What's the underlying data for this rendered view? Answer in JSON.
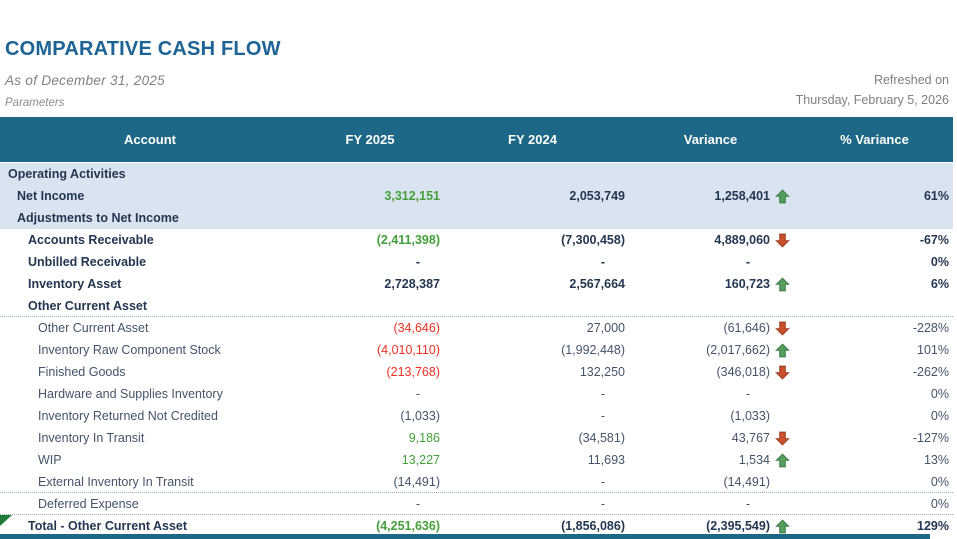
{
  "page": {
    "title": "COMPARATIVE CASH FLOW",
    "subtitle": "As of December 31, 2025",
    "parameters_label": "Parameters",
    "refreshed_label": "Refreshed on",
    "refreshed_date": "Thursday, February 5, 2026"
  },
  "colors": {
    "header_bg": "#1D6787",
    "band_bg": "#D9E4F0",
    "title_blue": "#1D6394",
    "bold_text": "#243751",
    "detail_text": "#44546A",
    "positive_green": "#45A03C",
    "negative_red": "#F03022",
    "arrow_up_green": "#559E5E",
    "arrow_down_red": "#C8502C"
  },
  "table": {
    "columns": [
      "Account",
      "FY 2025",
      "FY 2024",
      "Variance",
      "% Variance"
    ],
    "rows": [
      {
        "label": "Operating Activities",
        "indent": 1,
        "style": "section",
        "band": true,
        "fy2025": "",
        "fy2024": "",
        "variance": "",
        "arrow": "",
        "pct": "",
        "divider": false
      },
      {
        "label": "Net Income",
        "indent": 2,
        "style": "bold",
        "band": true,
        "fy2025": "3,312,151",
        "fy2025_color": "green",
        "fy2024": "2,053,749",
        "variance": "1,258,401",
        "arrow": "up",
        "pct": "61%",
        "divider": false
      },
      {
        "label": "Adjustments to Net Income",
        "indent": 2,
        "style": "section",
        "band": true,
        "fy2025": "",
        "fy2024": "",
        "variance": "",
        "arrow": "",
        "pct": "",
        "divider": false
      },
      {
        "label": "Accounts Receivable",
        "indent": 3,
        "style": "bold",
        "band": false,
        "fy2025": "(2,411,398)",
        "fy2025_color": "green",
        "fy2024": "(7,300,458)",
        "variance": "4,889,060",
        "arrow": "down",
        "pct": "-67%",
        "divider": false
      },
      {
        "label": "Unbilled Receivable",
        "indent": 3,
        "style": "bold",
        "band": false,
        "fy2025": "-",
        "fy2024": "-",
        "variance": "-",
        "arrow": "",
        "pct": "0%",
        "divider": false
      },
      {
        "label": "Inventory Asset",
        "indent": 3,
        "style": "bold",
        "band": false,
        "fy2025": "2,728,387",
        "fy2024": "2,567,664",
        "variance": "160,723",
        "arrow": "up",
        "pct": "6%",
        "divider": false
      },
      {
        "label": "Other Current Asset",
        "indent": 3,
        "style": "section",
        "band": false,
        "fy2025": "",
        "fy2024": "",
        "variance": "",
        "arrow": "",
        "pct": "",
        "divider": true
      },
      {
        "label": "Other Current Asset",
        "indent": 4,
        "style": "detail",
        "band": false,
        "fy2025": "(34,646)",
        "fy2025_color": "red",
        "fy2024": "27,000",
        "variance": "(61,646)",
        "arrow": "down",
        "pct": "-228%",
        "divider": false
      },
      {
        "label": "Inventory Raw Component Stock",
        "indent": 4,
        "style": "detail",
        "band": false,
        "fy2025": "(4,010,110)",
        "fy2025_color": "red",
        "fy2024": "(1,992,448)",
        "variance": "(2,017,662)",
        "arrow": "up",
        "pct": "101%",
        "divider": false
      },
      {
        "label": "Finished Goods",
        "indent": 4,
        "style": "detail",
        "band": false,
        "fy2025": "(213,768)",
        "fy2025_color": "red",
        "fy2024": "132,250",
        "variance": "(346,018)",
        "arrow": "down",
        "pct": "-262%",
        "divider": false
      },
      {
        "label": "Hardware and Supplies Inventory",
        "indent": 4,
        "style": "detail",
        "band": false,
        "fy2025": "-",
        "fy2024": "-",
        "variance": "-",
        "arrow": "",
        "pct": "0%",
        "divider": false
      },
      {
        "label": "Inventory Returned Not Credited",
        "indent": 4,
        "style": "detail",
        "band": false,
        "fy2025": "(1,033)",
        "fy2024": "-",
        "variance": "(1,033)",
        "arrow": "",
        "pct": "0%",
        "divider": false
      },
      {
        "label": "Inventory In Transit",
        "indent": 4,
        "style": "detail",
        "band": false,
        "fy2025": "9,186",
        "fy2025_color": "green",
        "fy2024": "(34,581)",
        "variance": "43,767",
        "arrow": "down",
        "pct": "-127%",
        "divider": false
      },
      {
        "label": "WIP",
        "indent": 4,
        "style": "detail",
        "band": false,
        "fy2025": "13,227",
        "fy2025_color": "green",
        "fy2024": "11,693",
        "variance": "1,534",
        "arrow": "up",
        "pct": "13%",
        "divider": false
      },
      {
        "label": "External Inventory In Transit",
        "indent": 4,
        "style": "detail",
        "band": false,
        "fy2025": "(14,491)",
        "fy2024": "-",
        "variance": "(14,491)",
        "arrow": "",
        "pct": "0%",
        "divider": true
      },
      {
        "label": "Deferred Expense",
        "indent": 4,
        "style": "detail",
        "band": false,
        "fy2025": "-",
        "fy2024": "-",
        "variance": "-",
        "arrow": "",
        "pct": "0%",
        "divider": true
      },
      {
        "label": "Total - Other Current Asset",
        "indent": 3,
        "style": "total",
        "band": false,
        "fy2025": "(4,251,636)",
        "fy2025_color": "green",
        "fy2024": "(1,856,086)",
        "variance": "(2,395,549)",
        "arrow": "up",
        "pct": "129%",
        "divider": false,
        "marker": true
      }
    ]
  }
}
